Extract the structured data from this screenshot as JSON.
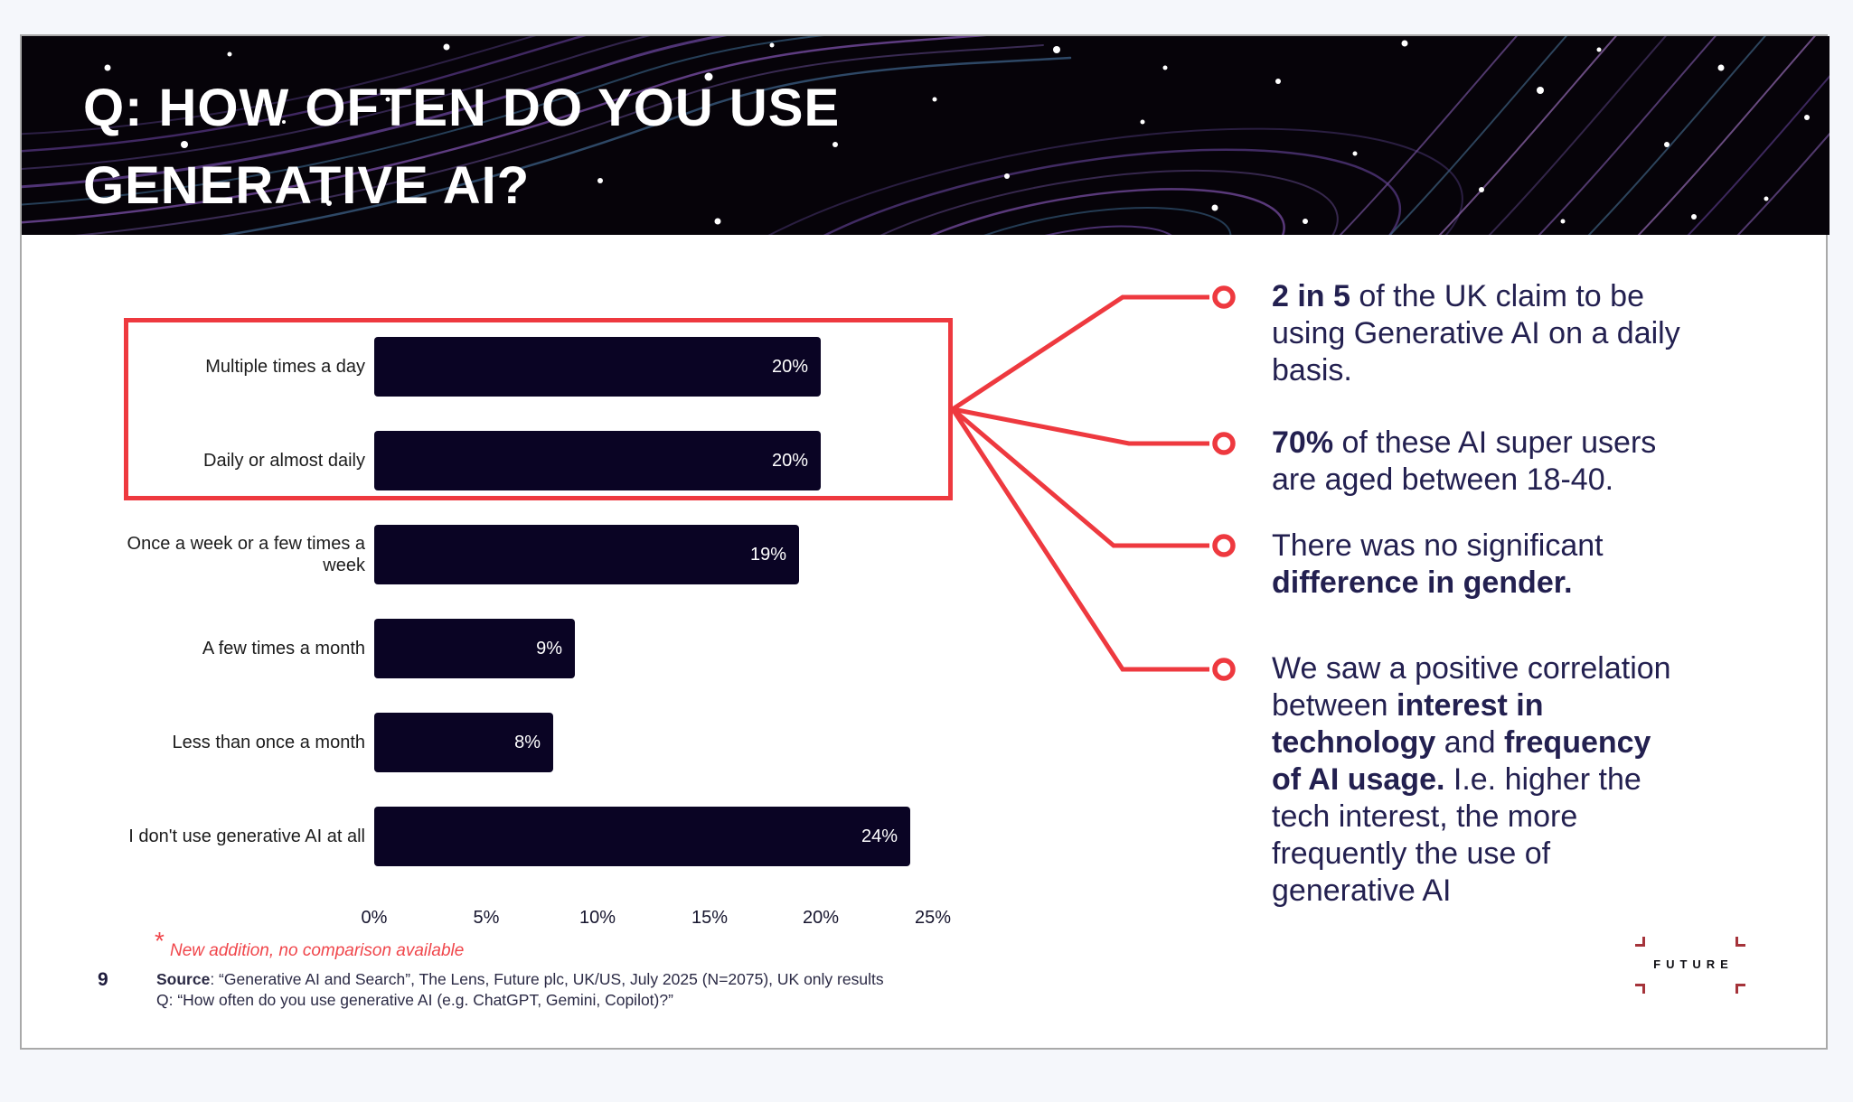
{
  "header": {
    "title_line1": "Q: HOW OFTEN DO YOU USE",
    "title_line2": "GENERATIVE AI?"
  },
  "chart_data": {
    "type": "bar",
    "orientation": "horizontal",
    "categories": [
      "Multiple times a day",
      "Daily or almost daily",
      "Once a week or a few times a week",
      "A few times a month",
      "Less than once a month",
      "I don't use generative AI at all"
    ],
    "values": [
      20,
      20,
      19,
      9,
      8,
      24
    ],
    "value_labels": [
      "20%",
      "20%",
      "19%",
      "9%",
      "8%",
      "24%"
    ],
    "x_ticks": [
      "0%",
      "5%",
      "10%",
      "15%",
      "20%",
      "25%"
    ],
    "xlim": [
      0,
      25
    ],
    "xlabel": "",
    "ylabel": "",
    "legend": "none",
    "grid": false,
    "bar_color": "#0a0424",
    "highlight_box_rows": [
      0,
      1
    ]
  },
  "annotations": [
    {
      "lines": [
        [
          {
            "t": "2 in 5",
            "b": true
          },
          {
            "t": " of the UK claim to be",
            "b": false
          }
        ],
        [
          {
            "t": "using Generative AI on a daily",
            "b": false
          }
        ],
        [
          {
            "t": "basis.",
            "b": false
          }
        ]
      ]
    },
    {
      "lines": [
        [
          {
            "t": "70%",
            "b": true
          },
          {
            "t": " of these AI super users",
            "b": false
          }
        ],
        [
          {
            "t": "are aged between 18-40.",
            "b": false
          }
        ]
      ]
    },
    {
      "lines": [
        [
          {
            "t": "There was no significant",
            "b": false
          }
        ],
        [
          {
            "t": "difference in gender.",
            "b": true
          }
        ]
      ]
    },
    {
      "lines": [
        [
          {
            "t": "We saw a positive correlation",
            "b": false
          }
        ],
        [
          {
            "t": "between ",
            "b": false
          },
          {
            "t": "interest in",
            "b": true
          }
        ],
        [
          {
            "t": "technology",
            "b": true
          },
          {
            "t": " and ",
            "b": false
          },
          {
            "t": "frequency",
            "b": true
          }
        ],
        [
          {
            "t": "of AI usage.",
            "b": true
          },
          {
            "t": " I.e. higher the",
            "b": false
          }
        ],
        [
          {
            "t": "tech interest, the more",
            "b": false
          }
        ],
        [
          {
            "t": "frequently the use of",
            "b": false
          }
        ],
        [
          {
            "t": "generative AI",
            "b": false
          }
        ]
      ]
    }
  ],
  "footnote": {
    "asterisk": "*",
    "text": "New addition, no comparison available"
  },
  "footer": {
    "page_number": "9",
    "source_label": "Source",
    "source_rest": ": “Generative AI and Search”, The Lens, Future plc, UK/US, July 2025 (N=2075), UK only results",
    "source_line2": "Q: “How often do you use generative AI (e.g. ChatGPT, Gemini, Copilot)?”"
  },
  "logo": {
    "text": "FUTURE"
  },
  "colors": {
    "accent_red": "#ee393f",
    "footnote_red": "#f0464b",
    "bar_navy": "#0a0424",
    "text_navy": "#232050",
    "logo_mark_red": "#a5333a"
  }
}
